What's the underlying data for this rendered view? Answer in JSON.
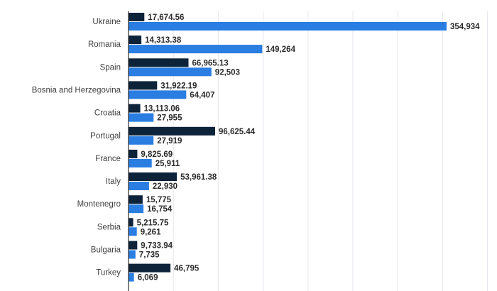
{
  "chart_data": {
    "type": "bar",
    "orientation": "horizontal",
    "title": "",
    "xlabel": "",
    "ylabel": "",
    "xlim": [
      0,
      360000
    ],
    "grid": true,
    "legend": "none",
    "categories": [
      "Ukraine",
      "Romania",
      "Spain",
      "Bosnia and Herzegovina",
      "Croatia",
      "Portugal",
      "France",
      "Italy",
      "Montenegro",
      "Serbia",
      "Bulgaria",
      "Turkey"
    ],
    "series": [
      {
        "color": "#0d233a",
        "values": [
          17674.56,
          14313.38,
          66965.13,
          31922.19,
          13113.06,
          96625.44,
          9825.69,
          53961.38,
          15775,
          5215.75,
          9733.94,
          46795
        ],
        "labels": [
          "17,674.56",
          "14,313.38",
          "66,965.13",
          "31,922.19",
          "13,113.06",
          "96,625.44",
          "9,825.69",
          "53,961.38",
          "15,775",
          "5,215.75",
          "9,733.94",
          "46,795"
        ]
      },
      {
        "color": "#2a7de1",
        "values": [
          354934,
          149264,
          92503,
          64407,
          27955,
          27919,
          25911,
          22930,
          16754,
          9261,
          7735,
          6069
        ],
        "labels": [
          "354,934",
          "149,264",
          "92,503",
          "64,407",
          "27,955",
          "27,919",
          "25,911",
          "22,930",
          "16,754",
          "9,261",
          "7,735",
          "6,069"
        ]
      }
    ]
  }
}
